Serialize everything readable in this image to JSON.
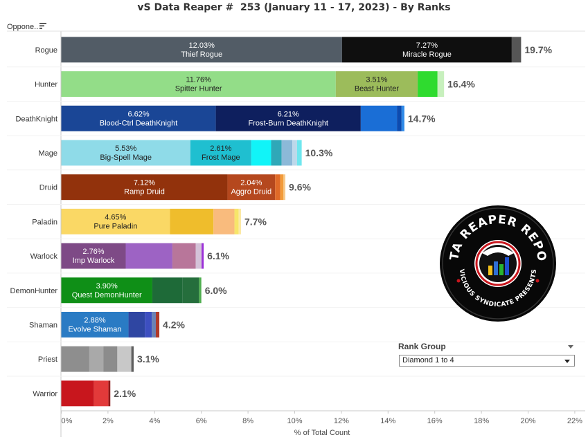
{
  "page": {
    "title": "vS Data Reaper #  253 (January 11 - 17, 2023) - By Ranks",
    "row_header": "Oppone..",
    "x_axis_title": "% of Total Count"
  },
  "filter": {
    "label": "Rank Group",
    "selected": "Diamond 1 to 4"
  },
  "logo": {
    "text_top": "DATA REAPER REPORT",
    "text_bottom": "VICIOUS SYNDICATE PRESENTS"
  },
  "chart_data": {
    "type": "bar",
    "orientation": "horizontal",
    "stacked": true,
    "title": "vS Data Reaper #  253 (January 11 - 17, 2023) - By Ranks",
    "xlabel": "% of Total Count",
    "ylabel": "",
    "xlim": [
      0,
      22
    ],
    "x_ticks": [
      "0%",
      "2%",
      "4%",
      "6%",
      "8%",
      "10%",
      "12%",
      "14%",
      "16%",
      "18%",
      "20%",
      "22%"
    ],
    "categories": [
      {
        "name": "Rogue",
        "total": 19.7,
        "total_label": "19.7%",
        "segments": [
          {
            "pct": 12.03,
            "label": "12.03%",
            "name": "Thief Rogue",
            "color": "#525c66"
          },
          {
            "pct": 7.27,
            "label": "7.27%",
            "name": "Miracle Rogue",
            "color": "#0f0f0f"
          },
          {
            "pct": 0.4,
            "color": "#555555"
          }
        ]
      },
      {
        "name": "Hunter",
        "total": 16.4,
        "total_label": "16.4%",
        "segments": [
          {
            "pct": 11.76,
            "label": "11.76%",
            "name": "Spitter Hunter",
            "color": "#93dd88"
          },
          {
            "pct": 3.51,
            "label": "3.51%",
            "name": "Beast Hunter",
            "color": "#9cbc5b"
          },
          {
            "pct": 0.85,
            "color": "#2fdb2f"
          },
          {
            "pct": 0.28,
            "color": "#c7f0bd"
          }
        ]
      },
      {
        "name": "DeathKnight",
        "total": 14.7,
        "total_label": "14.7%",
        "segments": [
          {
            "pct": 6.62,
            "label": "6.62%",
            "name": "Blood-Ctrl DeathKnight",
            "color": "#1a4696"
          },
          {
            "pct": 6.21,
            "label": "6.21%",
            "name": "Frost-Burn DeathKnight",
            "color": "#0e1f5e"
          },
          {
            "pct": 1.55,
            "color": "#1a6ed6"
          },
          {
            "pct": 0.2,
            "color": "#0c4bb0"
          },
          {
            "pct": 0.12,
            "color": "#2e8ae8"
          }
        ]
      },
      {
        "name": "Mage",
        "total": 10.3,
        "total_label": "10.3%",
        "segments": [
          {
            "pct": 5.53,
            "label": "5.53%",
            "name": "Big-Spell Mage",
            "color": "#8fdbe8"
          },
          {
            "pct": 2.61,
            "label": "2.61%",
            "name": "Frost Mage",
            "color": "#1fbfd0"
          },
          {
            "pct": 0.85,
            "color": "#11f4f8"
          },
          {
            "pct": 0.45,
            "color": "#2fa8b8"
          },
          {
            "pct": 0.46,
            "color": "#8cb9d8"
          },
          {
            "pct": 0.2,
            "color": "#bdd8ea"
          },
          {
            "pct": 0.2,
            "color": "#6fe6ee"
          }
        ]
      },
      {
        "name": "Druid",
        "total": 9.6,
        "total_label": "9.6%",
        "segments": [
          {
            "pct": 7.12,
            "label": "7.12%",
            "name": "Ramp Druid",
            "color": "#92320c"
          },
          {
            "pct": 2.04,
            "label": "2.04%",
            "name": "Aggro Druid",
            "color": "#b5481e"
          },
          {
            "pct": 0.22,
            "color": "#e06a28"
          },
          {
            "pct": 0.14,
            "color": "#f29b3a"
          },
          {
            "pct": 0.08,
            "color": "#f7c98a"
          }
        ]
      },
      {
        "name": "Paladin",
        "total": 7.7,
        "total_label": "7.7%",
        "segments": [
          {
            "pct": 4.65,
            "label": "4.65%",
            "name": "Pure Paladin",
            "color": "#fad865"
          },
          {
            "pct": 1.87,
            "color": "#efbd2c"
          },
          {
            "pct": 0.9,
            "color": "#f9bb7d"
          },
          {
            "pct": 0.18,
            "color": "#f7e56a"
          },
          {
            "pct": 0.1,
            "color": "#fbe9a4"
          }
        ]
      },
      {
        "name": "Warlock",
        "total": 6.1,
        "total_label": "6.1%",
        "segments": [
          {
            "pct": 2.76,
            "label": "2.76%",
            "name": "Imp Warlock",
            "color": "#7e4a86"
          },
          {
            "pct": 2.0,
            "color": "#9d63c4"
          },
          {
            "pct": 1.0,
            "color": "#b8769a"
          },
          {
            "pct": 0.25,
            "color": "#d4c2d8"
          },
          {
            "pct": 0.09,
            "color": "#9b30d8"
          }
        ]
      },
      {
        "name": "DemonHunter",
        "total": 6.0,
        "total_label": "6.0%",
        "segments": [
          {
            "pct": 3.9,
            "label": "3.90%",
            "name": "Quest DemonHunter",
            "color": "#0f8f17"
          },
          {
            "pct": 1.3,
            "color": "#1e6a38"
          },
          {
            "pct": 0.7,
            "color": "#256e3c"
          },
          {
            "pct": 0.1,
            "color": "#4fae4f"
          }
        ]
      },
      {
        "name": "Shaman",
        "total": 4.2,
        "total_label": "4.2%",
        "segments": [
          {
            "pct": 2.88,
            "label": "2.88%",
            "name": "Evolve Shaman",
            "color": "#2a7bc4"
          },
          {
            "pct": 0.7,
            "color": "#2f46a2"
          },
          {
            "pct": 0.3,
            "color": "#3d4fc0"
          },
          {
            "pct": 0.17,
            "color": "#6a82b4"
          },
          {
            "pct": 0.15,
            "color": "#b03a2a"
          }
        ]
      },
      {
        "name": "Priest",
        "total": 3.1,
        "total_label": "3.1%",
        "segments": [
          {
            "pct": 1.2,
            "color": "#8e8e8e"
          },
          {
            "pct": 0.6,
            "color": "#a9a9a9"
          },
          {
            "pct": 0.6,
            "color": "#8c8c8c"
          },
          {
            "pct": 0.6,
            "color": "#c8c8c8"
          },
          {
            "pct": 0.1,
            "color": "#5e5e5e"
          }
        ]
      },
      {
        "name": "Warrior",
        "total": 2.1,
        "total_label": "2.1%",
        "segments": [
          {
            "pct": 1.4,
            "color": "#c8161d"
          },
          {
            "pct": 0.62,
            "color": "#e23a3a"
          },
          {
            "pct": 0.08,
            "color": "#8f1a1a"
          }
        ]
      }
    ]
  }
}
